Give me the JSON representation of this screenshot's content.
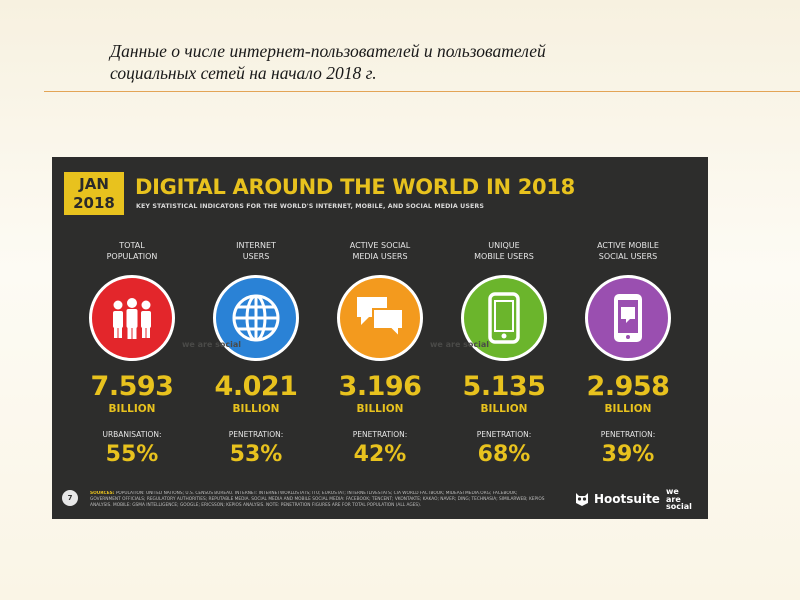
{
  "heading": {
    "line1": "Данные о числе интернет-пользователей и пользователей",
    "line2": "социальных сетей на начало 2018 г."
  },
  "slide": {
    "badge": {
      "month": "JAN",
      "year": "2018"
    },
    "title": "DIGITAL AROUND THE WORLD IN 2018",
    "subtitle": "KEY STATISTICAL INDICATORS FOR THE WORLD'S INTERNET, MOBILE, AND SOCIAL MEDIA USERS",
    "columns": [
      {
        "label": "TOTAL\nPOPULATION",
        "icon": "people-icon",
        "color": "#e3262b",
        "value": "7.593",
        "unit": "BILLION",
        "stat_label": "URBANISATION:",
        "stat_value": "55%"
      },
      {
        "label": "INTERNET\nUSERS",
        "icon": "globe-icon",
        "color": "#2a82d6",
        "value": "4.021",
        "unit": "BILLION",
        "stat_label": "PENETRATION:",
        "stat_value": "53%"
      },
      {
        "label": "ACTIVE SOCIAL\nMEDIA USERS",
        "icon": "chat-icon",
        "color": "#f39a1e",
        "value": "3.196",
        "unit": "BILLION",
        "stat_label": "PENETRATION:",
        "stat_value": "42%"
      },
      {
        "label": "UNIQUE\nMOBILE USERS",
        "icon": "phone-icon",
        "color": "#6bb52c",
        "value": "5.135",
        "unit": "BILLION",
        "stat_label": "PENETRATION:",
        "stat_value": "68%"
      },
      {
        "label": "ACTIVE MOBILE\nSOCIAL USERS",
        "icon": "mobile-chat-icon",
        "color": "#9a4fb0",
        "value": "2.958",
        "unit": "BILLION",
        "stat_label": "PENETRATION:",
        "stat_value": "39%"
      }
    ],
    "watermark": "we are social",
    "page_number": "7",
    "sources": {
      "label": "SOURCES:",
      "text": "POPULATION: UNITED NATIONS; U.S. CENSUS BUREAU. INTERNET: INTERNETWORLDSTATS; ITU; EUROSTAT; INTERNETLIVESTATS; CIA WORLD FACTBOOK; MIDEASTMEDIA.ORG; FACEBOOK; GOVERNMENT OFFICIALS; REGULATORY AUTHORITIES; REPUTABLE MEDIA. SOCIAL MEDIA AND MOBILE SOCIAL MEDIA: FACEBOOK; TENCENT; VKONTAKTE; KAKAO; NAVER; DING; TECHNASIA; SIMILARWEB; KEPIOS ANALYSIS. MOBILE: GSMA INTELLIGENCE; GOOGLE; ERICSSON; KEPIOS ANALYSIS. NOTE: PENETRATION FIGURES ARE FOR TOTAL POPULATION (ALL AGES)."
    },
    "brand": "Hootsuite",
    "brand2": [
      "we",
      "are",
      "social"
    ]
  },
  "colors": {
    "accent": "#e8c21e",
    "slide_bg": "#2d2d2c",
    "rule": "#e3a455"
  }
}
